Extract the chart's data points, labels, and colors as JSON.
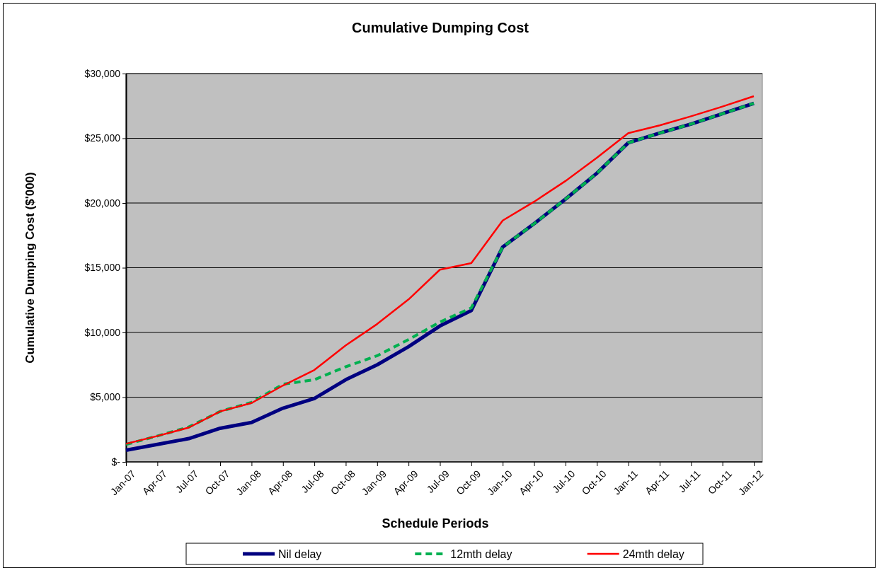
{
  "chart_data": {
    "type": "line",
    "title": "Cumulative Dumping Cost",
    "xlabel": "Schedule Periods",
    "ylabel": "Cumulative Dumping Cost ($'000)",
    "categories": [
      "Jan-07",
      "Apr-07",
      "Jul-07",
      "Oct-07",
      "Jan-08",
      "Apr-08",
      "Jul-08",
      "Oct-08",
      "Jan-09",
      "Apr-09",
      "Jul-09",
      "Oct-09",
      "Jan-10",
      "Apr-10",
      "Jul-10",
      "Oct-10",
      "Jan-11",
      "Apr-11",
      "Jul-11",
      "Oct-11",
      "Jan-12"
    ],
    "series": [
      {
        "name": "Nil delay",
        "color": "#000080",
        "line_style": "solid",
        "values": [
          900,
          1350,
          1800,
          2600,
          3050,
          4150,
          4900,
          6350,
          7500,
          8900,
          10500,
          11700,
          16600,
          18400,
          20300,
          22300,
          24650,
          25400,
          26100,
          26900,
          27700
        ]
      },
      {
        "name": "12mth delay",
        "color": "#00b050",
        "line_style": "dashed",
        "values": [
          1350,
          2000,
          2700,
          3900,
          4600,
          6000,
          6350,
          7350,
          8200,
          9450,
          10800,
          11900,
          16600,
          18400,
          20300,
          22300,
          24650,
          25400,
          26100,
          26900,
          27700
        ]
      },
      {
        "name": "24mth delay",
        "color": "#ff0000",
        "line_style": "solid",
        "values": [
          1400,
          2000,
          2650,
          3900,
          4550,
          5900,
          7100,
          9000,
          10650,
          12550,
          14850,
          15350,
          18650,
          20100,
          21700,
          23500,
          25400,
          26000,
          26700,
          27450,
          28250
        ]
      }
    ],
    "ylim": [
      0,
      30000
    ],
    "yticks": [
      {
        "value": 0,
        "label": "$-"
      },
      {
        "value": 5000,
        "label": "$5,000"
      },
      {
        "value": 10000,
        "label": "$10,000"
      },
      {
        "value": 15000,
        "label": "$15,000"
      },
      {
        "value": 20000,
        "label": "$20,000"
      },
      {
        "value": 25000,
        "label": "$25,000"
      },
      {
        "value": 30000,
        "label": "$30,000"
      }
    ],
    "grid": "y",
    "legend": "bottom",
    "marker": "none"
  }
}
